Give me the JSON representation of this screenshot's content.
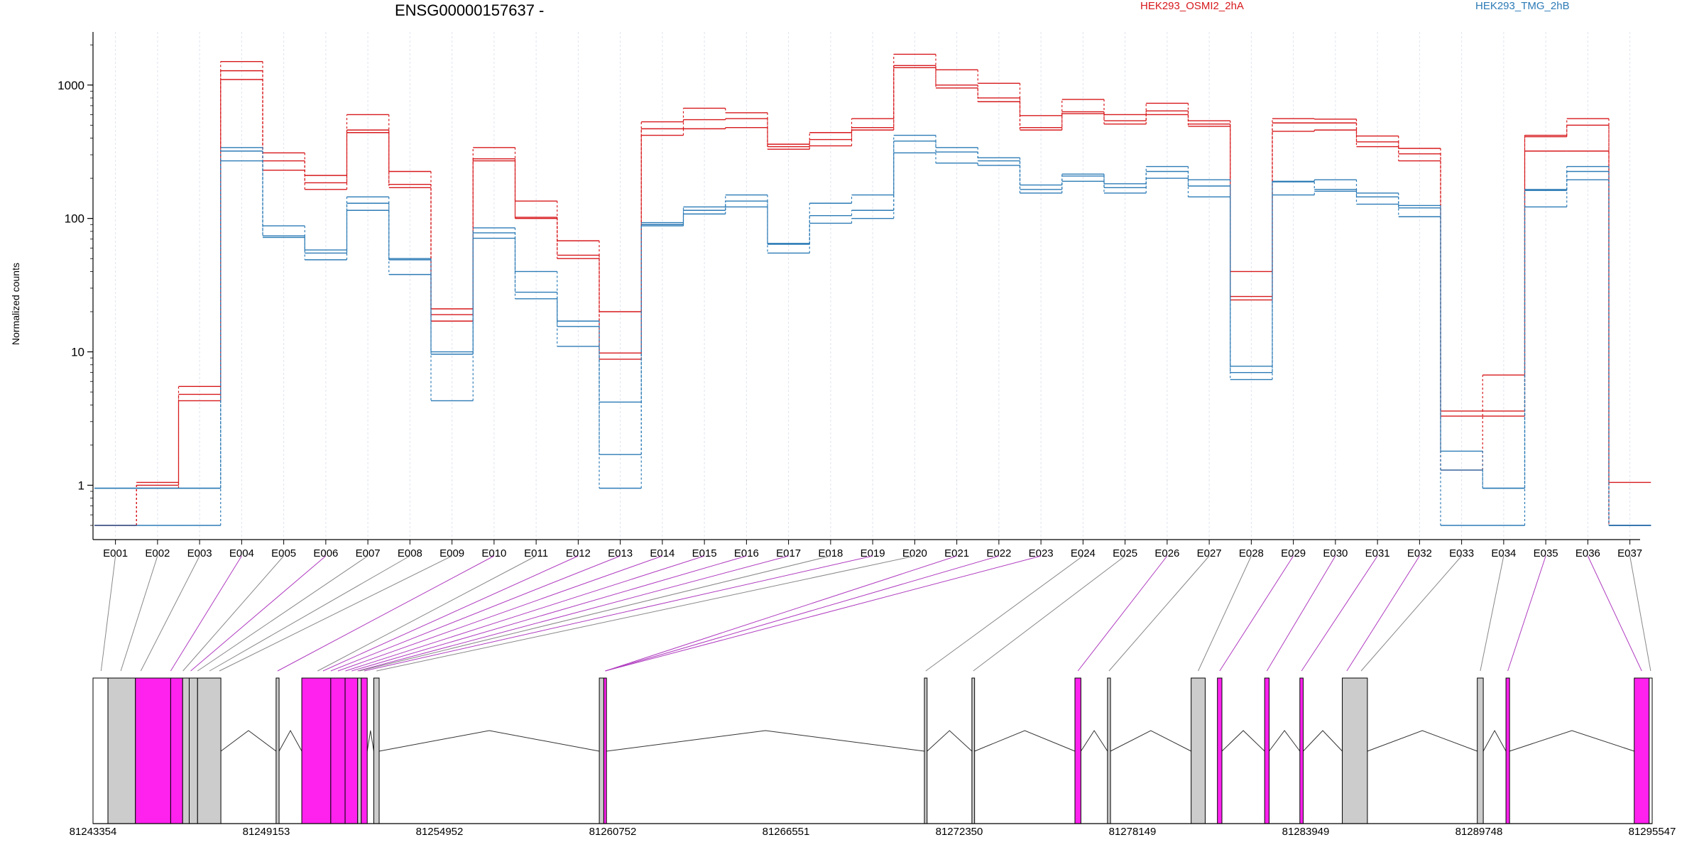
{
  "chart_data": {
    "type": "line",
    "title": "ENSG00000157637 -",
    "ylabel": "Normalized counts",
    "y_scale": "log",
    "y_ticks": [
      "1",
      "10",
      "100",
      "1000"
    ],
    "ylim": [
      0.5,
      2500
    ],
    "grid": "vertical dashed at each exon",
    "legend_placement": "top-right",
    "categories": [
      "E001",
      "E002",
      "E003",
      "E004",
      "E005",
      "E006",
      "E007",
      "E008",
      "E009",
      "E010",
      "E011",
      "E012",
      "E013",
      "E014",
      "E015",
      "E016",
      "E017",
      "E018",
      "E019",
      "E020",
      "E021",
      "E022",
      "E023",
      "E024",
      "E025",
      "E026",
      "E027",
      "E028",
      "E029",
      "E030",
      "E031",
      "E032",
      "E033",
      "E034",
      "E035",
      "E036",
      "E037"
    ],
    "groups": [
      {
        "name": "HEK293_OSMI2_2hA",
        "color": "#d7191c"
      },
      {
        "name": "HEK293_TMG_2hB",
        "color": "#2c7bb6"
      }
    ],
    "series": [
      {
        "group": 0,
        "values": [
          0.5,
          1.05,
          5.5,
          1500,
          310,
          210,
          600,
          225,
          21,
          340,
          135,
          68,
          20,
          530,
          670,
          620,
          360,
          440,
          560,
          1700,
          1300,
          1030,
          590,
          780,
          600,
          730,
          540,
          40,
          560,
          555,
          415,
          335,
          3.6,
          6.7,
          420,
          560,
          1.05
        ]
      },
      {
        "group": 0,
        "values": [
          0.5,
          1.0,
          4.3,
          1280,
          270,
          185,
          460,
          180,
          19,
          280,
          102,
          53,
          9.8,
          470,
          550,
          560,
          345,
          390,
          480,
          1400,
          1000,
          800,
          480,
          630,
          540,
          640,
          510,
          26,
          520,
          520,
          375,
          305,
          3.3,
          3.6,
          410,
          500,
          0.5
        ]
      },
      {
        "group": 0,
        "values": [
          0.5,
          0.95,
          4.8,
          1100,
          230,
          165,
          440,
          170,
          17,
          270,
          100,
          50,
          8.8,
          420,
          470,
          480,
          330,
          350,
          460,
          1350,
          950,
          750,
          460,
          610,
          510,
          600,
          490,
          24.5,
          450,
          460,
          345,
          270,
          1.3,
          3.3,
          320,
          320,
          0.5
        ]
      },
      {
        "group": 1,
        "values": [
          0.95,
          0.95,
          0.95,
          340,
          88,
          58,
          145,
          50,
          10,
          85,
          40,
          17,
          4.2,
          93,
          122,
          150,
          65,
          130,
          150,
          420,
          340,
          285,
          178,
          215,
          182,
          245,
          195,
          7.8,
          190,
          195,
          155,
          125,
          1.8,
          0.95,
          165,
          245,
          0.5
        ]
      },
      {
        "group": 1,
        "values": [
          0.95,
          0.95,
          0.95,
          320,
          74,
          55,
          130,
          49,
          9.6,
          78,
          28,
          15.5,
          1.7,
          90,
          115,
          135,
          64,
          105,
          115,
          380,
          315,
          270,
          165,
          208,
          170,
          225,
          175,
          7.0,
          188,
          165,
          145,
          120,
          1.3,
          0.95,
          162,
          225,
          0.5
        ]
      },
      {
        "group": 1,
        "values": [
          0.5,
          0.5,
          0.5,
          270,
          72,
          49,
          115,
          38,
          4.3,
          71,
          25,
          11,
          0.95,
          88,
          108,
          122,
          55,
          92,
          100,
          310,
          260,
          250,
          155,
          190,
          155,
          200,
          145,
          6.2,
          150,
          160,
          128,
          103,
          0.5,
          0.5,
          122,
          195,
          0.5
        ]
      }
    ],
    "gene_model": {
      "coordinate_labels": [
        "81243354",
        "81249153",
        "81254952",
        "81260752",
        "81266551",
        "81272350",
        "81278149",
        "81283949",
        "81289748",
        "81295547"
      ],
      "coordinate_range": [
        81243354,
        81295547
      ],
      "exons": [
        {
          "start": 81243354,
          "end": 81243854,
          "color": "#ffffff"
        },
        {
          "start": 81243854,
          "end": 81244774,
          "color": "#cccccc"
        },
        {
          "start": 81244774,
          "end": 81245954,
          "color": "#ff22ee"
        },
        {
          "start": 81245954,
          "end": 81246354,
          "color": "#ff22ee"
        },
        {
          "start": 81246354,
          "end": 81246574,
          "color": "#cccccc"
        },
        {
          "start": 81246574,
          "end": 81246854,
          "color": "#cccccc"
        },
        {
          "start": 81246854,
          "end": 81247634,
          "color": "#cccccc"
        },
        {
          "start": 81249483,
          "end": 81249583,
          "color": "#cccccc"
        },
        {
          "start": 81250343,
          "end": 81251313,
          "color": "#ff22ee"
        },
        {
          "start": 81251313,
          "end": 81251793,
          "color": "#ff22ee"
        },
        {
          "start": 81251793,
          "end": 81252213,
          "color": "#ff22ee"
        },
        {
          "start": 81252213,
          "end": 81252333,
          "color": "#cccccc"
        },
        {
          "start": 81252333,
          "end": 81252533,
          "color": "#ff22ee"
        },
        {
          "start": 81252753,
          "end": 81252933,
          "color": "#cccccc"
        },
        {
          "start": 81260302,
          "end": 81260452,
          "color": "#cccccc"
        },
        {
          "start": 81260452,
          "end": 81260542,
          "color": "#ff22ee"
        },
        {
          "start": 81271185,
          "end": 81271275,
          "color": "#cccccc"
        },
        {
          "start": 81272775,
          "end": 81272865,
          "color": "#cccccc"
        },
        {
          "start": 81276224,
          "end": 81276424,
          "color": "#ff22ee"
        },
        {
          "start": 81277314,
          "end": 81277414,
          "color": "#cccccc"
        },
        {
          "start": 81280114,
          "end": 81280584,
          "color": "#cccccc"
        },
        {
          "start": 81280994,
          "end": 81281144,
          "color": "#ff22ee"
        },
        {
          "start": 81282574,
          "end": 81282724,
          "color": "#ff22ee"
        },
        {
          "start": 81283754,
          "end": 81283864,
          "color": "#ff22ee"
        },
        {
          "start": 81285174,
          "end": 81286014,
          "color": "#cccccc"
        },
        {
          "start": 81289693,
          "end": 81289893,
          "color": "#cccccc"
        },
        {
          "start": 81290653,
          "end": 81290773,
          "color": "#ff22ee"
        },
        {
          "start": 81294947,
          "end": 81295447,
          "color": "#ff22ee"
        },
        {
          "start": 81295447,
          "end": 81295547,
          "color": "#ffffff"
        }
      ],
      "introns": [
        [
          81247634,
          81249483
        ],
        [
          81249583,
          81250343
        ],
        [
          81252533,
          81252753
        ],
        [
          81252933,
          81260302
        ],
        [
          81260542,
          81271185
        ],
        [
          81271275,
          81272775
        ],
        [
          81272865,
          81276224
        ],
        [
          81276424,
          81277314
        ],
        [
          81277414,
          81280114
        ],
        [
          81281144,
          81282574
        ],
        [
          81282724,
          81283754
        ],
        [
          81283864,
          81285174
        ],
        [
          81286014,
          81289693
        ],
        [
          81289893,
          81290653
        ],
        [
          81290773,
          81294947
        ]
      ],
      "connector_targets": [
        81243624,
        81244284,
        81244954,
        81245954,
        81246364,
        81246624,
        81246854,
        81247254,
        81247584,
        81249533,
        81250873,
        81251053,
        81251313,
        81251553,
        81251803,
        81252013,
        81252213,
        81252273,
        81252433,
        81252843,
        81260502,
        81260502,
        81260502,
        81271230,
        81272820,
        81276324,
        81277364,
        81280349,
        81281069,
        81282649,
        81283809,
        81285324,
        81285804,
        81289793,
        81290713,
        81295197,
        81295497
      ],
      "connector_highlight": [
        false,
        false,
        false,
        true,
        false,
        true,
        false,
        false,
        false,
        true,
        false,
        true,
        true,
        true,
        true,
        true,
        true,
        false,
        true,
        false,
        true,
        true,
        true,
        false,
        false,
        true,
        false,
        false,
        true,
        true,
        true,
        true,
        false,
        false,
        true,
        true,
        false
      ]
    }
  }
}
